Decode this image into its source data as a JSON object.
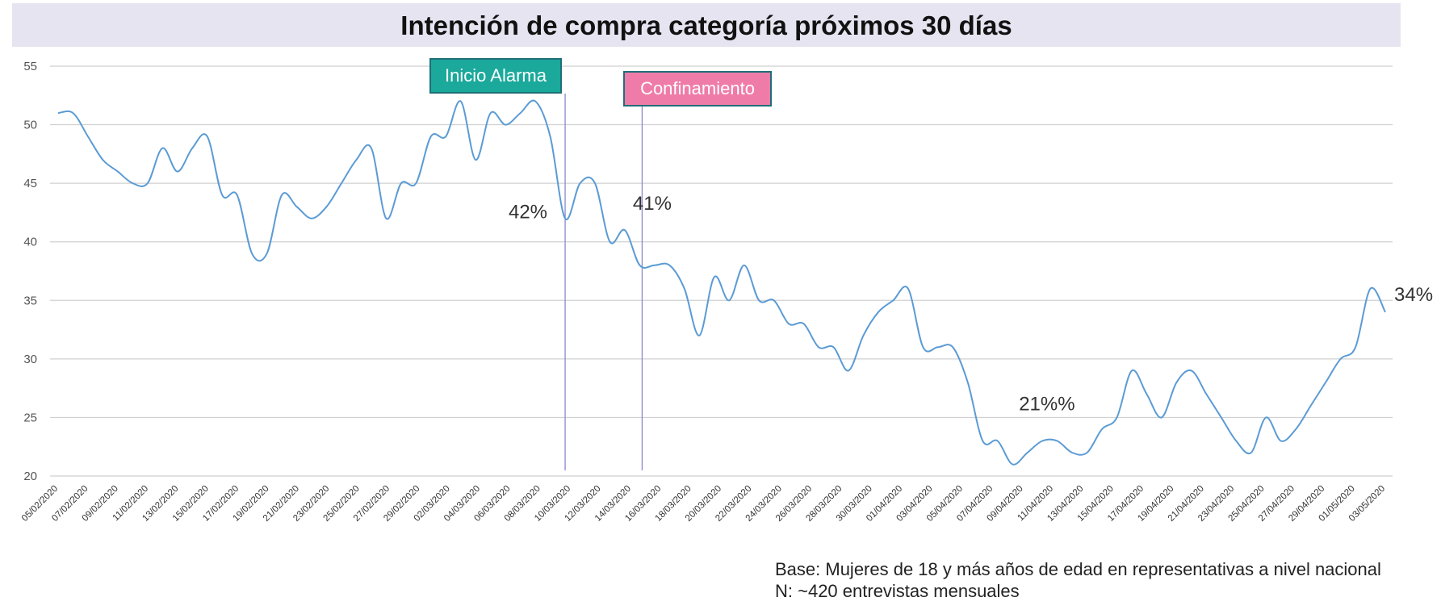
{
  "chart_data": {
    "type": "line",
    "title": "Intención de compra categoría próximos 30 días",
    "xlabel": "",
    "ylabel": "",
    "ylim": [
      20,
      55
    ],
    "yticks": [
      20,
      25,
      30,
      35,
      40,
      45,
      50,
      55
    ],
    "grid": true,
    "line_color": "#5b9bd5",
    "x_tick_labels": [
      "05/02/2020",
      "07/02/2020",
      "09/02/2020",
      "11/02/2020",
      "13/02/2020",
      "15/02/2020",
      "17/02/2020",
      "19/02/2020",
      "21/02/2020",
      "23/02/2020",
      "25/02/2020",
      "27/02/2020",
      "29/02/2020",
      "02/03/2020",
      "04/03/2020",
      "06/03/2020",
      "08/03/2020",
      "10/03/2020",
      "12/03/2020",
      "14/03/2020",
      "16/03/2020",
      "18/03/2020",
      "20/03/2020",
      "22/03/2020",
      "24/03/2020",
      "26/03/2020",
      "28/03/2020",
      "30/03/2020",
      "01/04/2020",
      "03/04/2020",
      "05/04/2020",
      "07/04/2020",
      "09/04/2020",
      "11/04/2020",
      "13/04/2020",
      "15/04/2020",
      "17/04/2020",
      "19/04/2020",
      "21/04/2020",
      "23/04/2020",
      "25/04/2020",
      "27/04/2020",
      "29/04/2020",
      "01/05/2020",
      "03/05/2020"
    ],
    "series": [
      {
        "values": [
          51,
          51,
          49,
          47,
          46,
          45,
          45,
          48,
          46,
          48,
          49,
          44,
          44,
          39,
          39,
          44,
          43,
          42,
          43,
          45,
          47,
          48,
          42,
          45,
          45,
          49,
          49,
          52,
          47,
          51,
          50,
          51,
          52,
          49,
          42,
          45,
          45,
          40,
          41,
          38,
          38,
          38,
          36,
          32,
          37,
          35,
          38,
          35,
          35,
          33,
          33,
          31,
          31,
          29,
          32,
          34,
          35,
          36,
          31,
          31,
          31,
          28,
          23,
          23,
          21,
          22,
          23,
          23,
          22,
          22,
          24,
          25,
          29,
          27,
          25,
          28,
          29,
          27,
          25,
          23,
          22,
          25,
          23,
          24,
          26,
          28,
          30,
          31,
          36,
          34
        ]
      }
    ],
    "annotations": [
      {
        "text": "42%",
        "index": 34
      },
      {
        "text": "41%",
        "index": 38
      },
      {
        "text": "21%%",
        "index": 64
      },
      {
        "text": "34%",
        "index": 89
      }
    ],
    "events": [
      {
        "label": "Inicio Alarma",
        "index": 34,
        "color": "#1aa99b"
      },
      {
        "label": "Confinamiento",
        "index": 39,
        "color": "#ef7ca8"
      }
    ]
  },
  "footer": {
    "base": "Base: Mujeres de 18 y más años de edad en representativas a nivel nacional",
    "n": "N: ~420 entrevistas mensuales"
  }
}
